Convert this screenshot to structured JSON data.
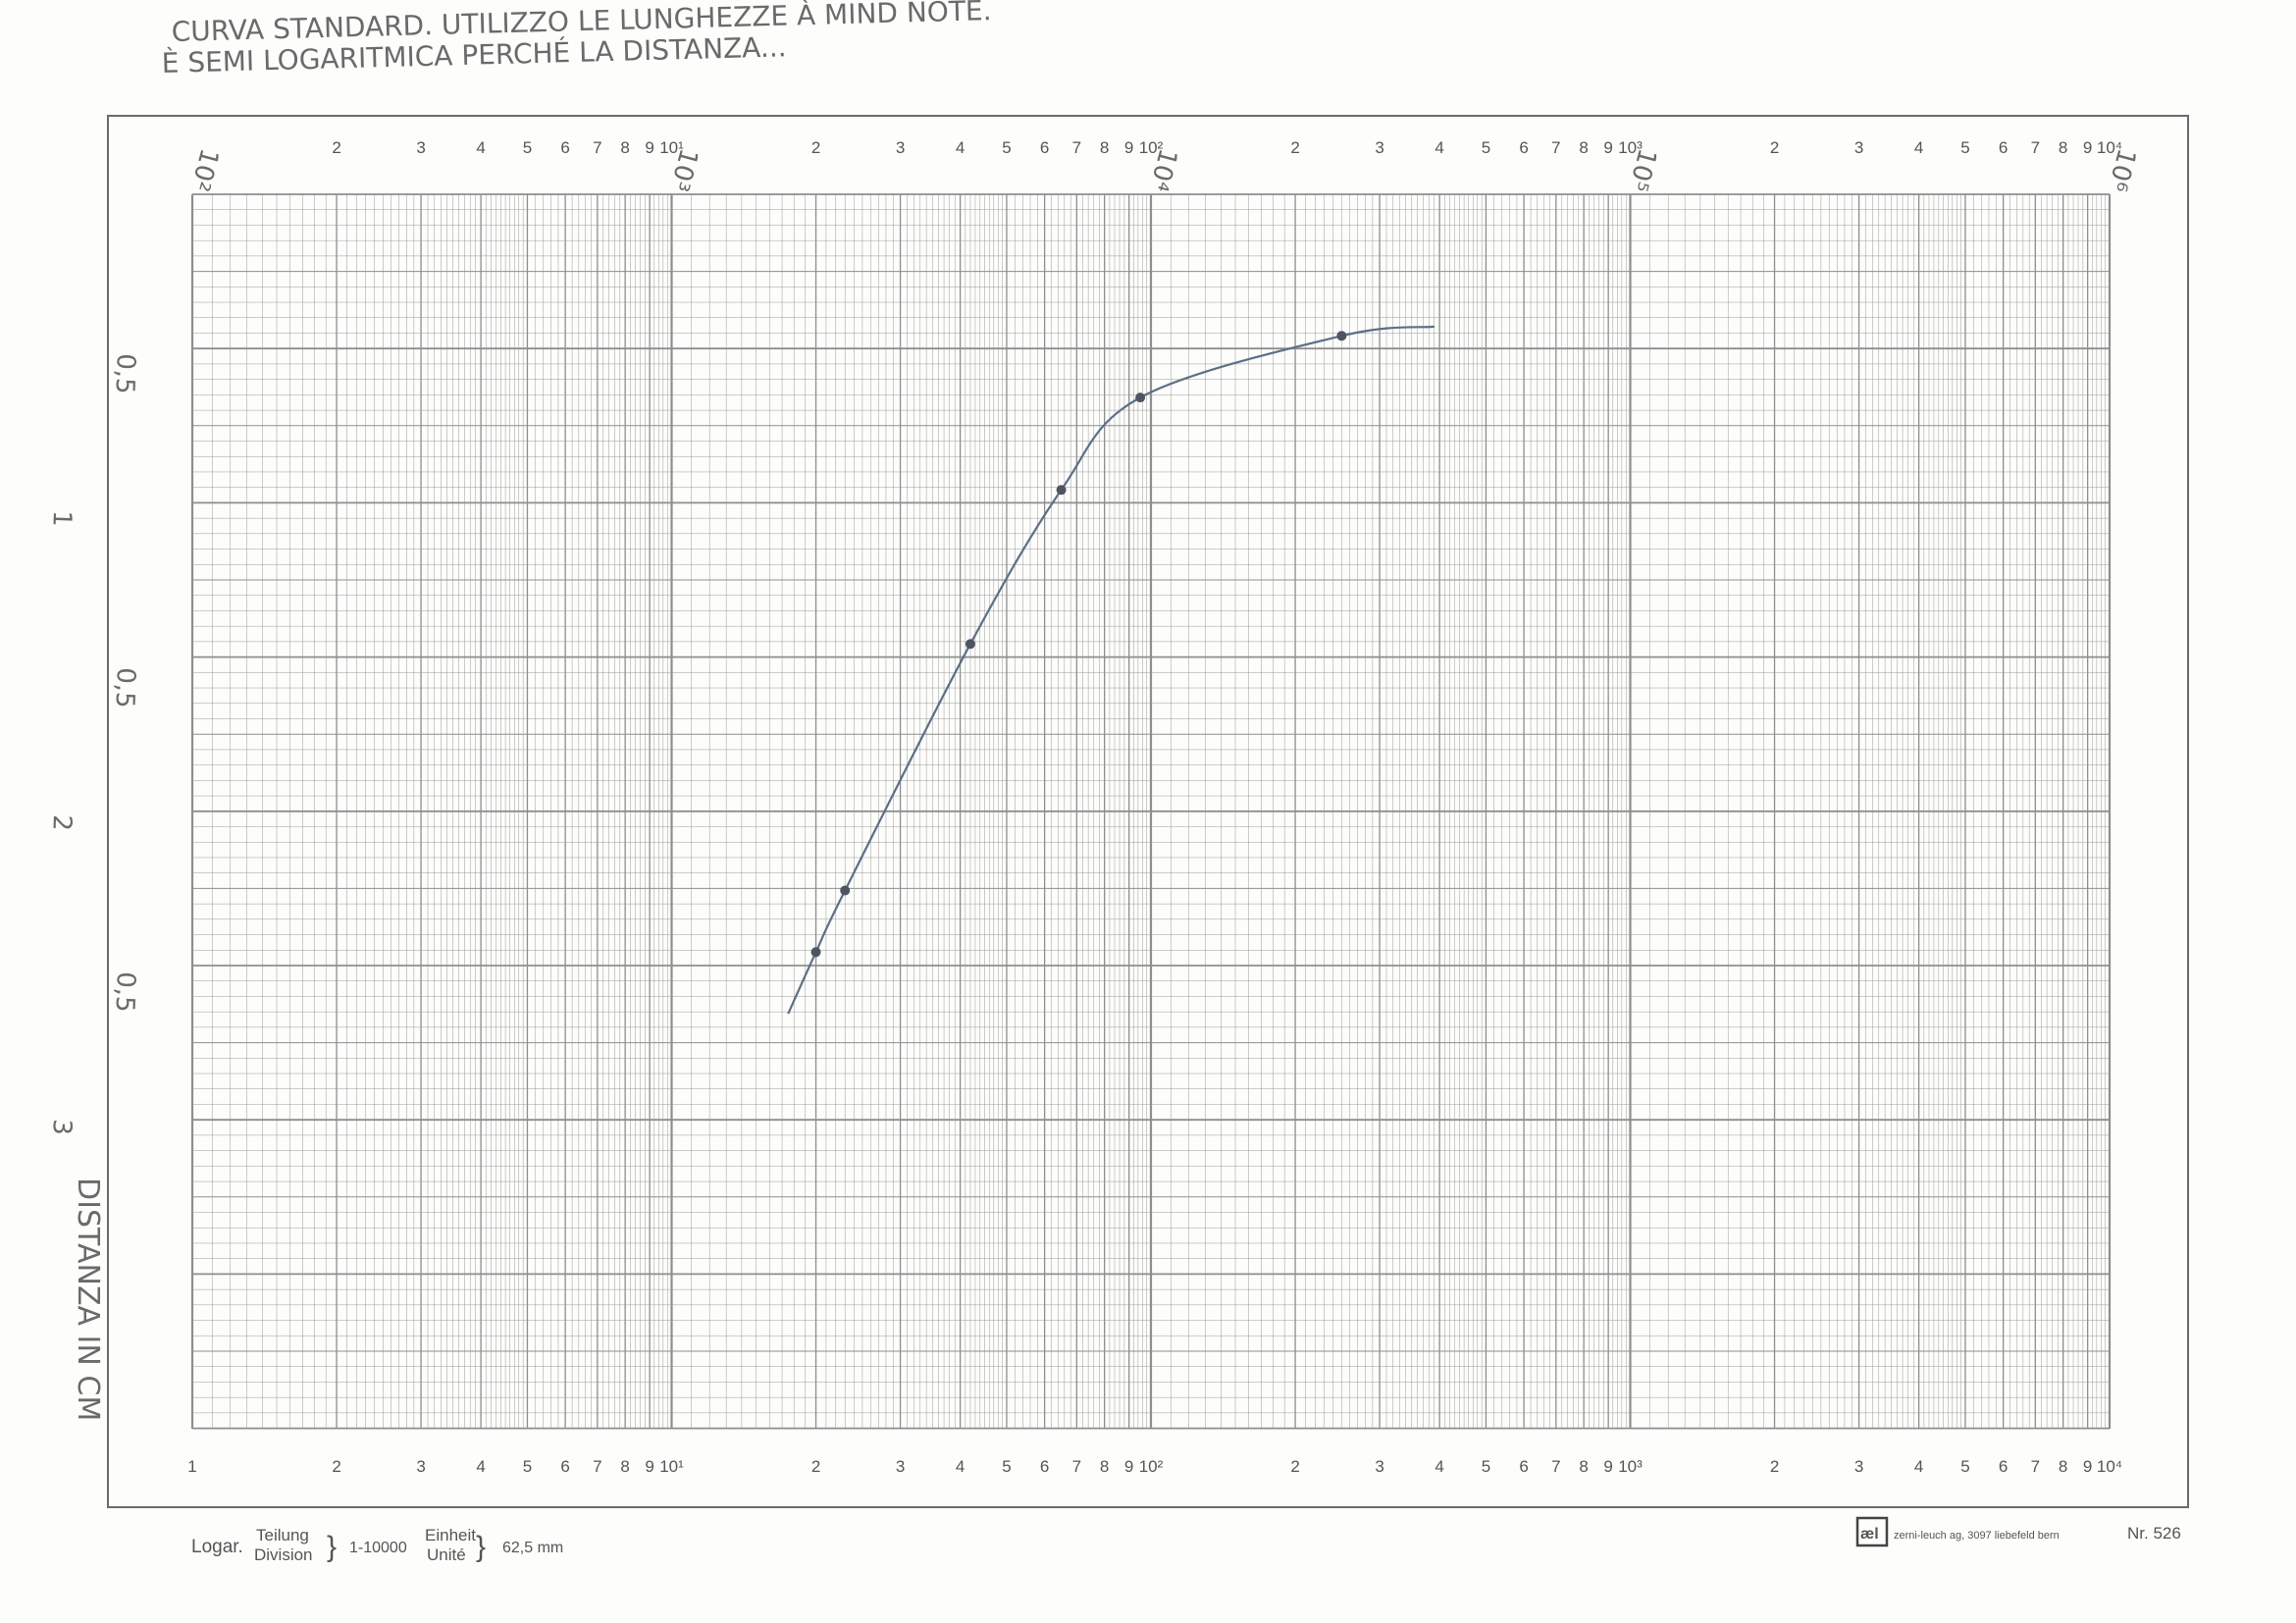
{
  "chart_data": {
    "type": "line",
    "title": "CURVA STANDARD. UTILIZZO LE LUNGHEZZE À MIND NOTE.",
    "subtitle": "È SEMI LOGARITMICA PERCHÉ LA DISTANZA...",
    "ylabel": "DISTANZA IN CM",
    "x_scale": "log",
    "xlim": [
      1,
      10000
    ],
    "bottom_tick_labels": [
      "1",
      "2",
      "3",
      "4",
      "5",
      "6",
      "7",
      "8",
      "9",
      "10¹",
      "2",
      "3",
      "4",
      "5",
      "6",
      "7",
      "8",
      "9",
      "10²",
      "2",
      "3",
      "4",
      "5",
      "6",
      "7",
      "8",
      "9",
      "10³",
      "2",
      "3",
      "4",
      "5",
      "6",
      "7",
      "8",
      "9",
      "10⁴"
    ],
    "top_tick_labels": [
      "2",
      "3",
      "4",
      "5",
      "6",
      "7",
      "8",
      "9",
      "10¹",
      "2",
      "3",
      "4",
      "5",
      "6",
      "7",
      "8",
      "9",
      "10²",
      "2",
      "3",
      "4",
      "5",
      "6",
      "7",
      "8",
      "9",
      "10³",
      "2",
      "3",
      "4",
      "5",
      "6",
      "7",
      "8",
      "9",
      "10⁴"
    ],
    "top_decade_marks": [
      "10²",
      "10³",
      "10⁴",
      "10⁵",
      "10⁶"
    ],
    "left_axis_labels": [
      "0,5",
      "1",
      "0,5",
      "2",
      "0,5",
      "3"
    ],
    "grid": true,
    "series": [
      {
        "points": [
          {
            "x": 20,
            "y": 2.45
          },
          {
            "x": 23,
            "y": 2.25
          },
          {
            "x": 42,
            "y": 1.45
          },
          {
            "x": 65,
            "y": 0.95
          },
          {
            "x": 95,
            "y": 0.65
          },
          {
            "x": 250,
            "y": 0.45
          }
        ]
      }
    ],
    "colors": {
      "grid": "#8e8e8e",
      "curve": "#5c6f86",
      "ink": "#6a6a6a"
    }
  },
  "footer": {
    "logar": "Logar.",
    "teilung": "Teilung",
    "division": "Division",
    "range": "1-10000",
    "einheit": "Einheit",
    "unite": "Unité",
    "unit_value": "62,5 mm",
    "brand_mark": "æl",
    "publisher": "zerni-leuch ag, 3097 liebefeld bern",
    "sheet_number": "Nr. 526"
  }
}
